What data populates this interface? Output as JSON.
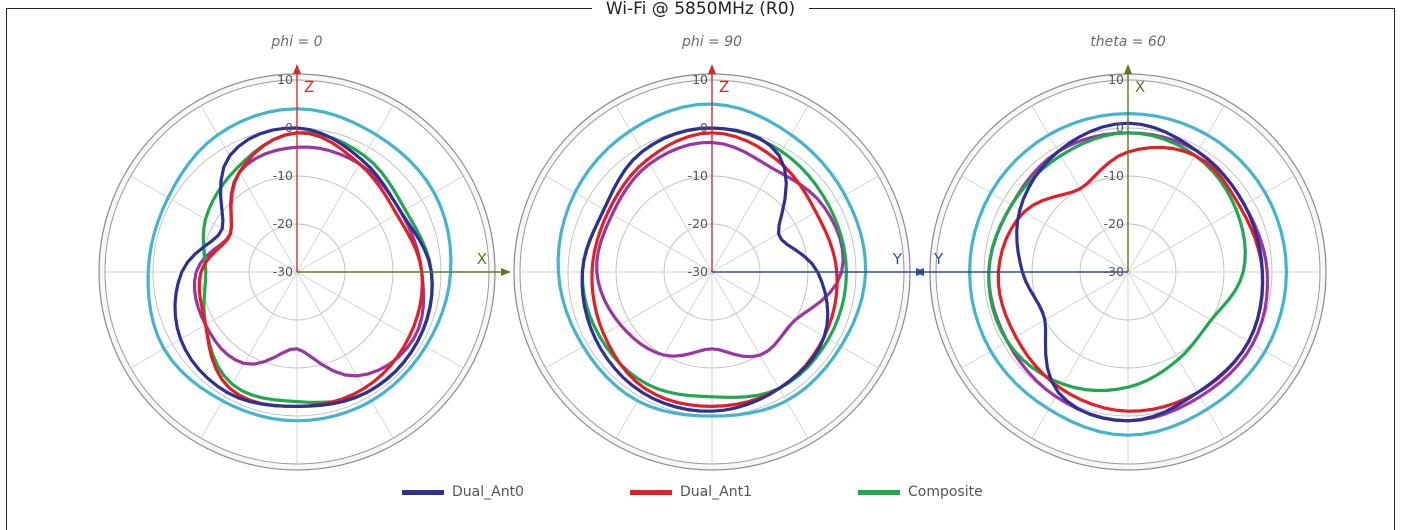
{
  "title": "Wi-Fi @ 5850MHz (R0)",
  "legend": [
    {
      "name": "Dual_Ant0",
      "color": "#2e3192"
    },
    {
      "name": "Dual_Ant1",
      "color": "#e31e24"
    },
    {
      "name": "Composite",
      "color": "#1fa84f"
    }
  ],
  "chart_data": [
    {
      "type": "polar-line",
      "subtitle": "phi = 0",
      "radial_ticks": [
        "10",
        "0",
        "-10",
        "-20",
        "-30"
      ],
      "r_range": [
        -30,
        10
      ],
      "axes": {
        "vertical": "Z",
        "horizontal": "X",
        "horizontal_direction": "right"
      },
      "angle_step_deg": 30,
      "series": [
        {
          "name": "Dual_Ant0",
          "color": "#2e3192",
          "gain_db_every_30deg": [
            0,
            -3,
            -5,
            -2,
            -1,
            -1,
            -2,
            -1,
            -2,
            -6,
            -12,
            -2
          ]
        },
        {
          "name": "Dual_Ant1",
          "color": "#e31e24",
          "gain_db_every_30deg": [
            -1,
            -4,
            -6,
            -4,
            -3,
            -2,
            -2,
            -2,
            -8,
            -10,
            -14,
            -6
          ]
        },
        {
          "name": "Composite",
          "color": "#1fa84f",
          "gain_db_every_30deg": [
            -1,
            -2,
            -4,
            -2,
            -1,
            -1,
            -3,
            -3,
            -8,
            -11,
            -8,
            -5
          ]
        },
        {
          "name": "",
          "color": "#9b35a3",
          "gain_db_every_30deg": [
            -4,
            -4,
            -5,
            -4,
            -2,
            -5,
            -14,
            -8,
            -8,
            -9,
            -14,
            -6
          ]
        },
        {
          "name": "",
          "color": "#43b4d0",
          "gain_db_every_30deg": [
            4,
            3,
            3,
            2,
            1,
            1,
            1,
            1,
            2,
            1,
            1,
            3
          ]
        }
      ]
    },
    {
      "type": "polar-line",
      "subtitle": "phi = 90",
      "radial_ticks": [
        "10",
        "0",
        "-10",
        "-20",
        "-30"
      ],
      "r_range": [
        -30,
        10
      ],
      "axes": {
        "vertical": "Z",
        "horizontal": "Y",
        "horizontal_direction": "right"
      },
      "angle_step_deg": 30,
      "series": [
        {
          "name": "Dual_Ant0",
          "color": "#2e3192",
          "gain_db_every_30deg": [
            0,
            -2,
            -14,
            -8,
            -3,
            -2,
            -1,
            -1,
            -2,
            -3,
            -4,
            -1
          ]
        },
        {
          "name": "Dual_Ant1",
          "color": "#e31e24",
          "gain_db_every_30deg": [
            -1,
            -3,
            -5,
            -4,
            -3,
            -2,
            -2,
            -2,
            -4,
            -5,
            -5,
            -3
          ]
        },
        {
          "name": "Composite",
          "color": "#1fa84f",
          "gain_db_every_30deg": [
            0,
            -1,
            -2,
            -2,
            -2,
            -2,
            -4,
            -3,
            -3,
            -3,
            -4,
            -1
          ]
        },
        {
          "name": "",
          "color": "#9b35a3",
          "gain_db_every_30deg": [
            -3,
            -5,
            -3,
            -3,
            -10,
            -10,
            -14,
            -10,
            -8,
            -6,
            -6,
            -4
          ]
        },
        {
          "name": "",
          "color": "#43b4d0",
          "gain_db_every_30deg": [
            5,
            3,
            2,
            2,
            1,
            1,
            0,
            1,
            1,
            2,
            3,
            4
          ]
        }
      ]
    },
    {
      "type": "polar-line",
      "subtitle": "theta = 60",
      "radial_ticks": [
        "10",
        "0",
        "-10",
        "-20",
        "-30"
      ],
      "r_range": [
        -30,
        10
      ],
      "axes": {
        "vertical": "X",
        "horizontal": "Y",
        "horizontal_direction": "left"
      },
      "angle_step_deg": 30,
      "series": [
        {
          "name": "Dual_Ant0",
          "color": "#2e3192",
          "gain_db_every_30deg": [
            1,
            -1,
            -2,
            -2,
            -1,
            -1,
            1,
            -1,
            -10,
            -8,
            -4,
            -1
          ]
        },
        {
          "name": "Dual_Ant1",
          "color": "#e31e24",
          "gain_db_every_30deg": [
            -5,
            -2,
            -3,
            -2,
            -1,
            -1,
            -1,
            -2,
            -3,
            -3,
            -5,
            -10
          ]
        },
        {
          "name": "Composite",
          "color": "#1fa84f",
          "gain_db_every_30deg": [
            -1,
            -2,
            -4,
            -6,
            -10,
            -9,
            -6,
            -3,
            -1,
            -1,
            -2,
            -2
          ]
        },
        {
          "name": "",
          "color": "#9b35a3",
          "gain_db_every_30deg": [
            -1,
            -1,
            -2,
            -1,
            0,
            0,
            1,
            0,
            -1,
            -1,
            -2,
            -1
          ]
        },
        {
          "name": "",
          "color": "#43b4d0",
          "gain_db_every_30deg": [
            3,
            3,
            3,
            3,
            3,
            3,
            4,
            3,
            3,
            3,
            3,
            3
          ]
        }
      ]
    }
  ]
}
